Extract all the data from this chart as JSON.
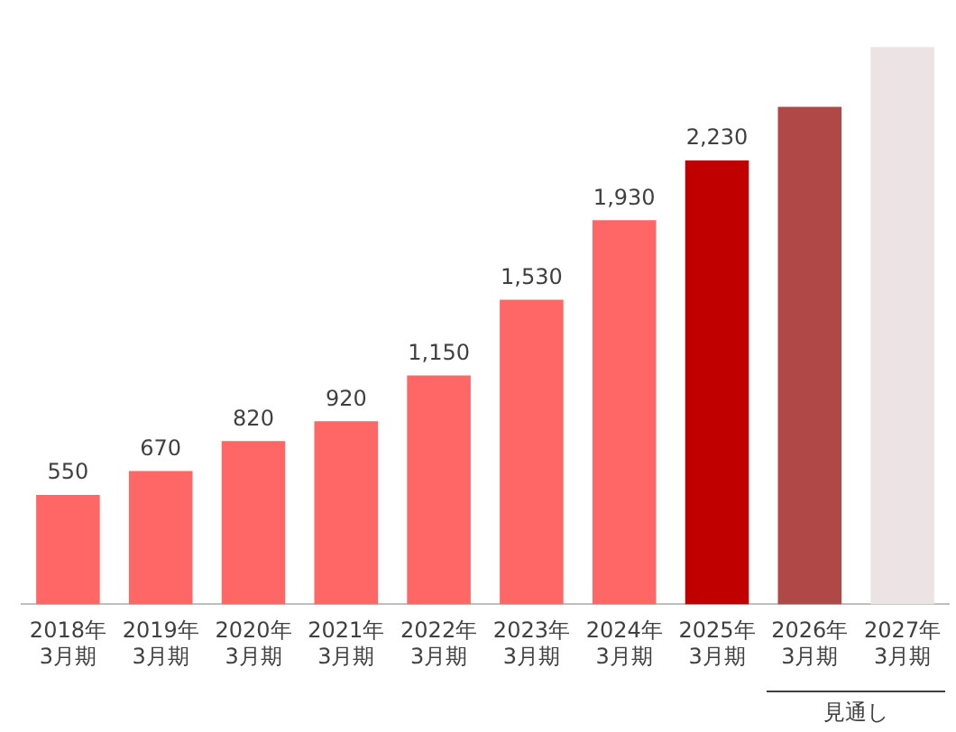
{
  "chart_data": {
    "type": "bar",
    "categories": [
      "2018年\n3月期",
      "2019年\n3月期",
      "2020年\n3月期",
      "2021年\n3月期",
      "2022年\n3月期",
      "2023年\n3月期",
      "2024年\n3月期",
      "2025年\n3月期",
      "2026年\n3月期",
      "2027年\n3月期"
    ],
    "values": [
      550,
      670,
      820,
      920,
      1150,
      1530,
      1930,
      2230,
      2500,
      2800
    ],
    "colors": [
      "#ff6666",
      "#ff6666",
      "#ff6666",
      "#ff6666",
      "#ff6666",
      "#ff6666",
      "#ff6666",
      "#c00000",
      "#b04848",
      "#ece4e4"
    ],
    "value_labels": [
      "550",
      "670",
      "820",
      "920",
      "1,150",
      "1,530",
      "1,930",
      "2,230",
      null,
      null
    ],
    "relative": false,
    "grid": false,
    "legend": false,
    "annotations": [
      "見通し"
    ]
  }
}
